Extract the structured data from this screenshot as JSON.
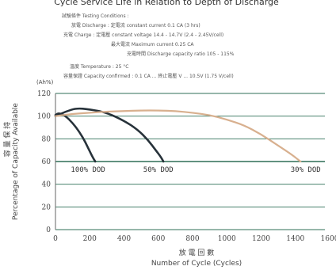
{
  "header": {
    "title": "Cycle Service Life in Relation to Depth of Discharge"
  },
  "conditions": {
    "heading": "試驗條件 Testing Conditions :",
    "lines": [
      "放電 Discharge : 定電流 constant current 0.1 CA (3 hrs)",
      "充電 Charge : 定電壓 constant voltage 14.4 - 14.7V (2.4 - 2.45V/cell)",
      "最大電流 Maximum current 0.25 CA",
      "充電時間 Discharge capacity ratio 105 - 115%",
      "溫度 Temperature : 25 °C",
      "容量保證 Capacity confirmed : 0.1 CA ... 終止電壓 V ... 10.5V (1.75 V/cell)"
    ]
  },
  "chart_data": {
    "type": "line",
    "title": "Cycle Service Life in Relation to Depth of Discharge",
    "xlabel": "Number of Cycle (Cycles)",
    "xlabel_zh": "放 電 回 數",
    "ylabel": "Percentage of Capacity Available",
    "ylabel_zh": "容 量 保 持",
    "y_unit": "(Ah%)",
    "xlim": [
      0,
      1600
    ],
    "ylim": [
      0,
      120
    ],
    "x_ticks": [
      0,
      200,
      400,
      600,
      800,
      1000,
      1200,
      1400,
      1600
    ],
    "y_ticks": [
      0,
      20,
      40,
      60,
      80,
      100,
      120
    ],
    "grid": "horizontal",
    "series": [
      {
        "name": "100% DOD",
        "color": "#27323a",
        "x": [
          0,
          20,
          60,
          100,
          140,
          175,
          200,
          220,
          232
        ],
        "y": [
          101,
          103,
          100,
          94,
          86,
          77,
          69,
          63,
          60
        ]
      },
      {
        "name": "50% DOD",
        "color": "#27323a",
        "x": [
          0,
          60,
          120,
          200,
          300,
          400,
          480,
          540,
          585,
          615,
          630
        ],
        "y": [
          100,
          104,
          107,
          106,
          103,
          96,
          88,
          79,
          70,
          64,
          60
        ]
      },
      {
        "name": "30% DOD",
        "color": "#d8b08f",
        "x": [
          0,
          100,
          200,
          300,
          400,
          500,
          600,
          700,
          800,
          900,
          1000,
          1100,
          1200,
          1300,
          1380,
          1430
        ],
        "y": [
          100,
          102,
          103,
          104,
          104.5,
          105,
          105,
          104.5,
          103,
          101,
          97,
          92,
          84,
          74,
          66,
          60
        ]
      }
    ],
    "annotations": [
      {
        "text": "100% DOD",
        "x": 190,
        "y": 51
      },
      {
        "text": "50% DOD",
        "x": 600,
        "y": 51
      },
      {
        "text": "30% DOD",
        "x": 1460,
        "y": 51
      }
    ]
  }
}
